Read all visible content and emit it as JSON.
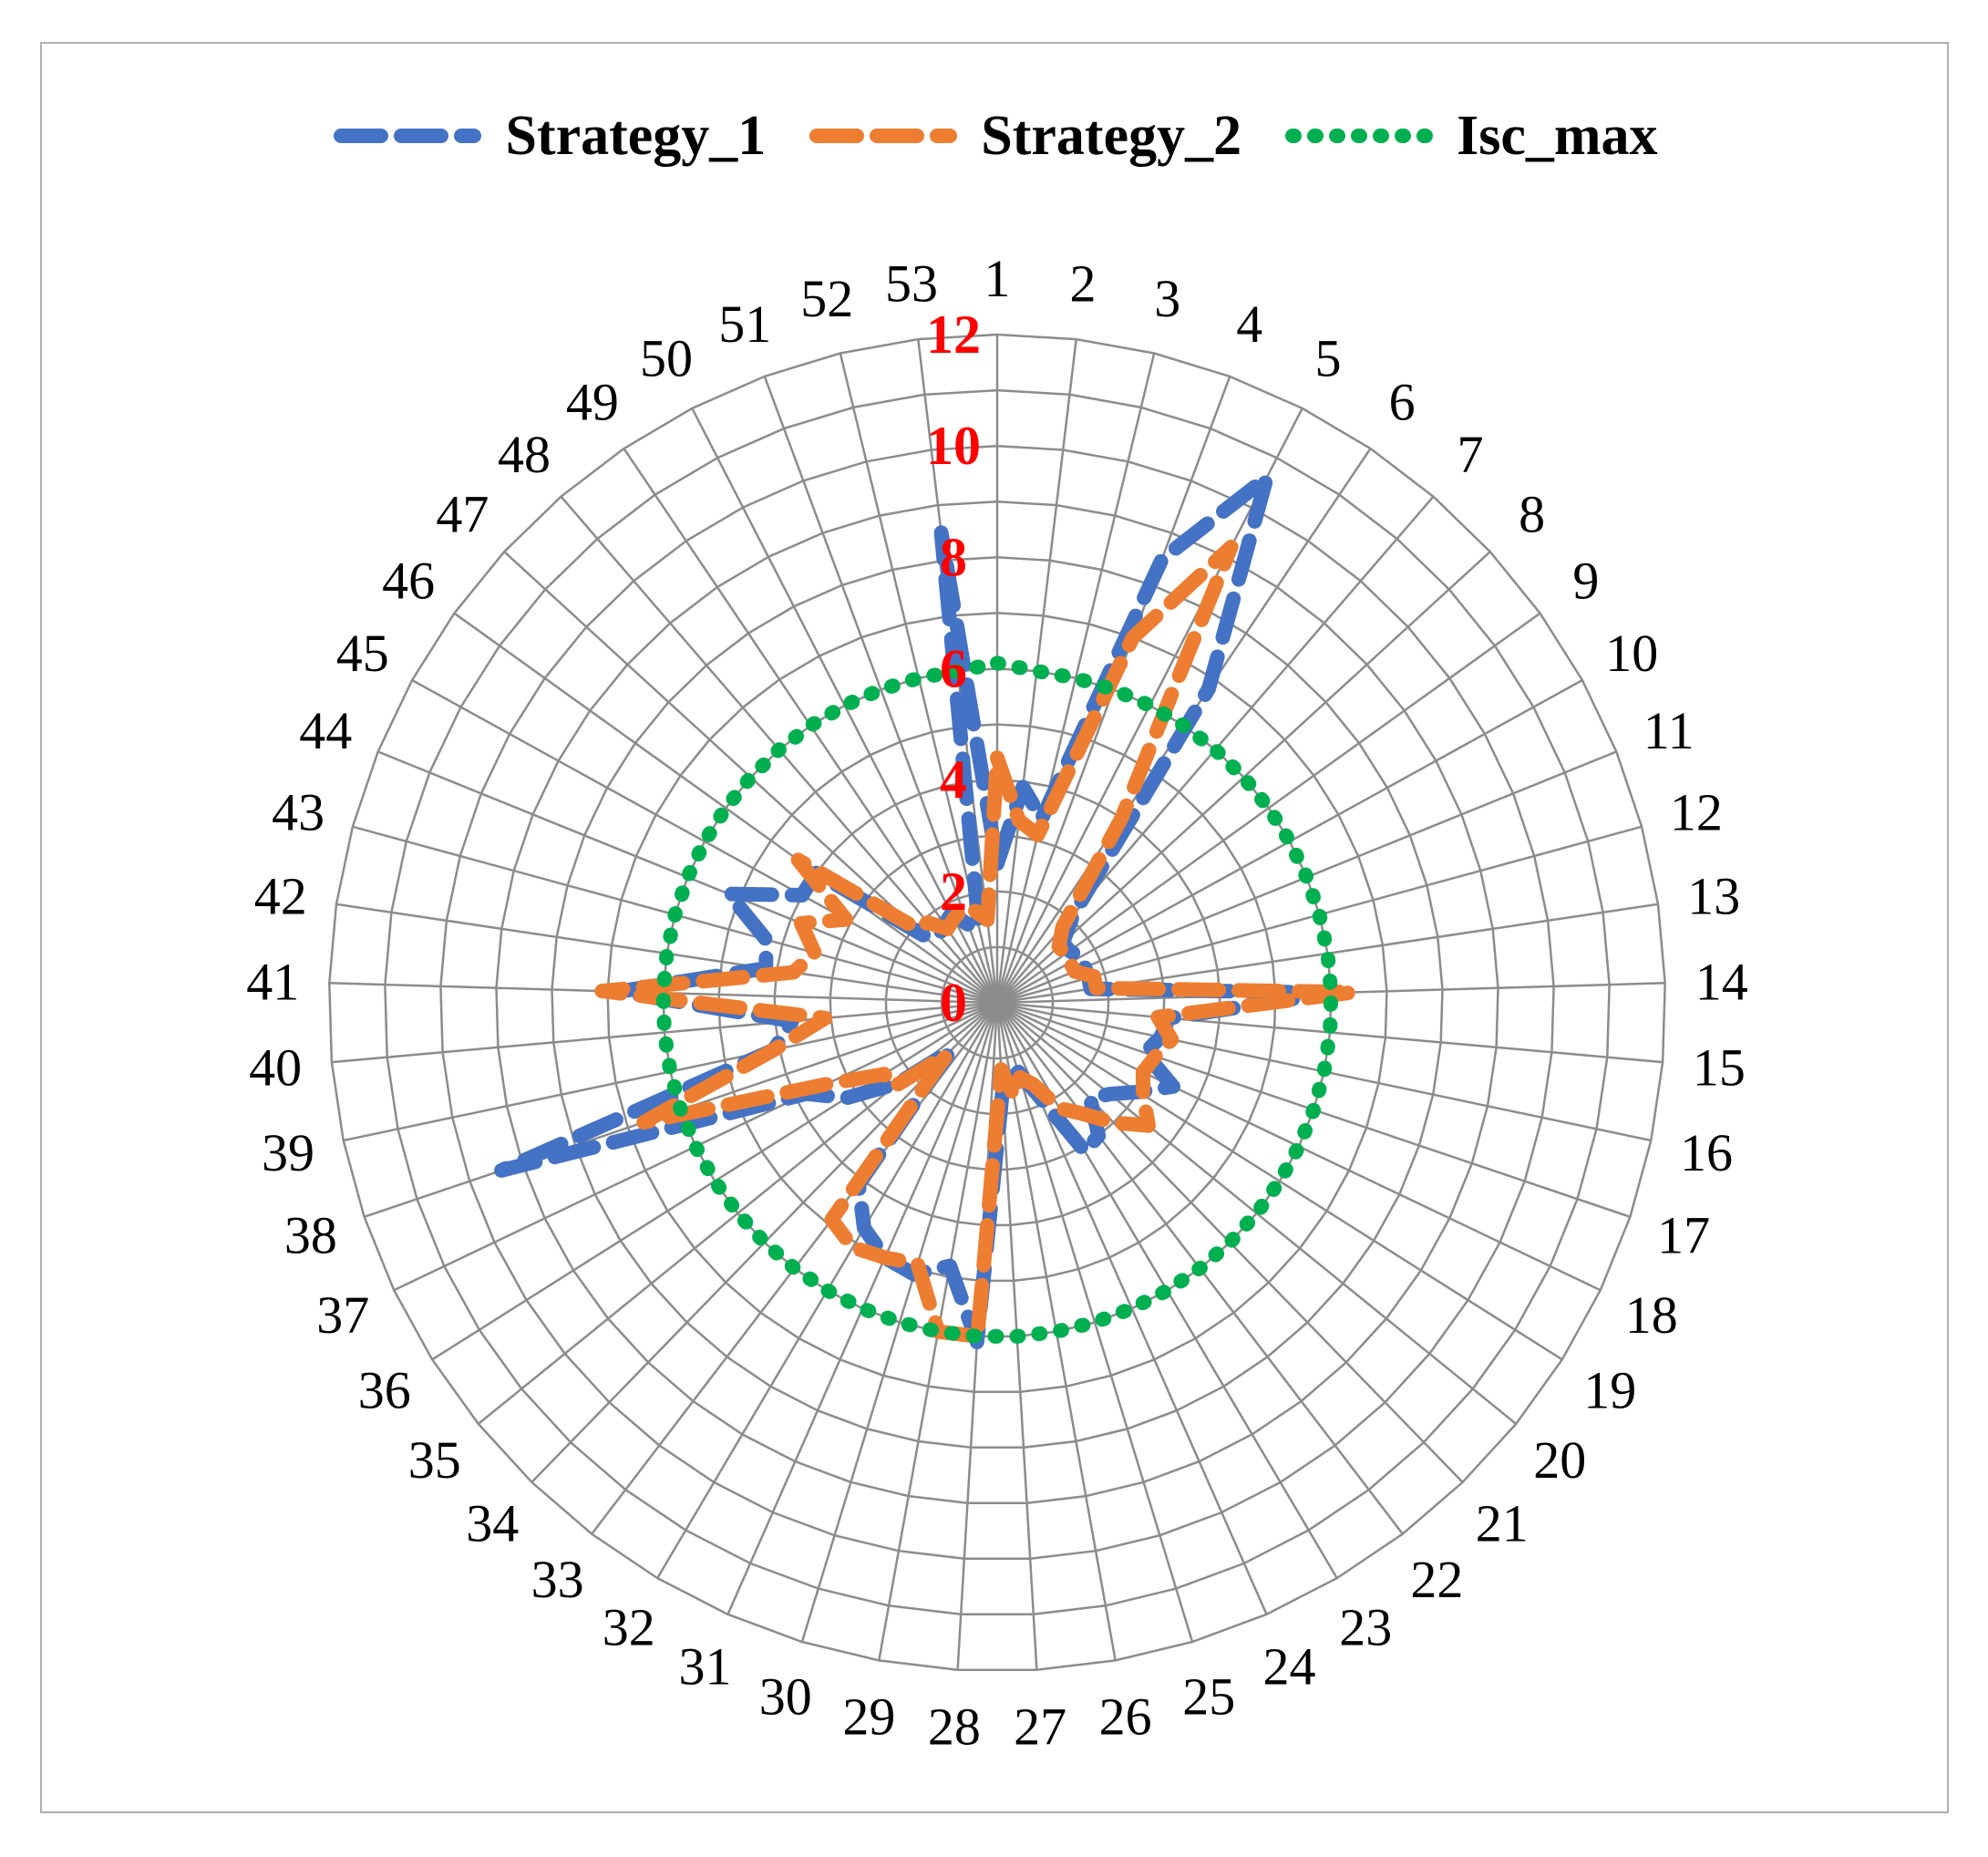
{
  "chart_data": {
    "type": "radar",
    "categories": [
      "1",
      "2",
      "3",
      "4",
      "5",
      "6",
      "7",
      "8",
      "9",
      "10",
      "11",
      "12",
      "13",
      "14",
      "15",
      "16",
      "17",
      "18",
      "19",
      "20",
      "21",
      "22",
      "23",
      "24",
      "25",
      "26",
      "27",
      "28",
      "29",
      "30",
      "31",
      "32",
      "33",
      "34",
      "35",
      "36",
      "37",
      "38",
      "39",
      "40",
      "41",
      "42",
      "43",
      "44",
      "45",
      "46",
      "47",
      "48",
      "49",
      "50",
      "51",
      "52",
      "53"
    ],
    "r_ticks": [
      "0",
      "2",
      "4",
      "6",
      "8",
      "10",
      "12"
    ],
    "rlim": [
      0,
      12
    ],
    "grid": true,
    "legend_position": "top",
    "series": [
      {
        "name": "Strategy_1",
        "color": "#4472C4",
        "values": [
          2.5,
          3.9,
          3.4,
          8.5,
          10.6,
          6.8,
          2.1,
          1.6,
          1.6,
          1.7,
          1.7,
          1.7,
          1.7,
          6.0,
          3.1,
          3.0,
          2.8,
          3.5,
          3.0,
          2.6,
          2.4,
          3.0,
          3.1,
          1.8,
          1.3,
          1.4,
          1.6,
          6.1,
          4.8,
          5.1,
          5.0,
          4.7,
          4.1,
          1.2,
          2.3,
          3.2,
          3.8,
          9.4,
          4.1,
          3.7,
          6.8,
          4.2,
          4.3,
          5.2,
          4.0,
          4.0,
          1.8,
          1.6,
          1.7,
          1.8,
          1.5,
          1.4,
          8.5
        ],
        "dash": "long-dash"
      },
      {
        "name": "Strategy_2",
        "color": "#ED7D31",
        "values": [
          4.4,
          3.3,
          3.1,
          7.0,
          9.2,
          4.0,
          1.8,
          1.5,
          1.5,
          1.5,
          1.5,
          1.8,
          1.8,
          6.4,
          2.9,
          3.2,
          3.0,
          2.9,
          3.1,
          3.5,
          3.0,
          2.5,
          2.2,
          1.6,
          1.4,
          1.7,
          1.2,
          6.0,
          6.0,
          4.9,
          5.0,
          5.1,
          4.9,
          1.3,
          2.4,
          2.4,
          3.4,
          6.7,
          4.1,
          3.1,
          7.1,
          3.7,
          3.4,
          3.8,
          3.1,
          4.4,
          2.0,
          1.9,
          1.6,
          1.7,
          1.8,
          1.7,
          1.5
        ],
        "dash": "long-dash"
      },
      {
        "name": "Isc_max",
        "color": "#00B050",
        "values": [
          6.1,
          6.0,
          6.0,
          6.0,
          6.0,
          6.0,
          6.0,
          6.0,
          6.0,
          6.0,
          6.0,
          6.0,
          6.0,
          6.0,
          6.0,
          6.0,
          6.0,
          6.0,
          6.0,
          6.0,
          6.0,
          6.0,
          6.0,
          6.0,
          6.0,
          6.0,
          6.0,
          6.0,
          6.0,
          6.0,
          6.0,
          6.0,
          6.0,
          6.0,
          6.0,
          6.0,
          6.0,
          6.0,
          6.0,
          6.0,
          6.0,
          6.0,
          6.0,
          6.0,
          6.0,
          6.0,
          6.0,
          6.0,
          6.0,
          6.0,
          6.0,
          6.0,
          6.0
        ],
        "dash": "round-dot"
      }
    ]
  }
}
